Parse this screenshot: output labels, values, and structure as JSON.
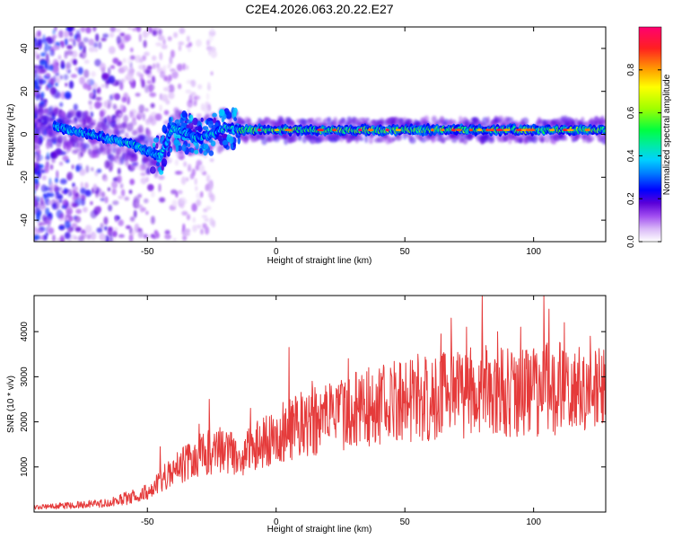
{
  "figure": {
    "title": "C2E4.2026.063.20.22.E27"
  },
  "colors": {
    "snr_line": "#e53b3b",
    "ridge_core": "#e8244d",
    "colormap": [
      "#ffffff",
      "#c98cf4",
      "#8a2be2",
      "#4b00d9",
      "#0000ff",
      "#00c0ff",
      "#00e0c0",
      "#00ff60",
      "#a0ff00",
      "#ffff00",
      "#ffa000",
      "#ff3000",
      "#ff0060"
    ]
  },
  "chart_data": [
    {
      "type": "heatmap",
      "title": "",
      "xlabel": "Height of straight line (km)",
      "ylabel": "Frequency (Hz)",
      "xlim": [
        -94,
        128
      ],
      "ylim": [
        -50,
        50
      ],
      "xticks": [
        -50,
        0,
        50,
        100
      ],
      "yticks": [
        -40,
        -20,
        0,
        20,
        40
      ],
      "grid": false,
      "ridge": {
        "description_points_x": [
          -94,
          -80,
          -65,
          -55,
          -50,
          -45,
          -40,
          -30,
          -25,
          -20,
          -15,
          0,
          50,
          100,
          128
        ],
        "frequency_y": [
          5,
          2,
          -2,
          -5,
          -8,
          -10,
          3,
          -2,
          0,
          3,
          2,
          2,
          2,
          2,
          2
        ]
      },
      "colorbar": {
        "label": "Normalized spectral amplitude",
        "range": [
          0.0,
          1.0
        ],
        "ticks": [
          0.0,
          0.2,
          0.4,
          0.6,
          0.8
        ]
      }
    },
    {
      "type": "line",
      "title": "",
      "xlabel": "Height of straight line (km)",
      "ylabel": "SNR (10 * v/v)",
      "xlim": [
        -94,
        128
      ],
      "ylim": [
        0,
        4800
      ],
      "xticks": [
        -50,
        0,
        50,
        100
      ],
      "yticks": [
        1000,
        2000,
        3000,
        4000
      ],
      "grid": false,
      "series": [
        {
          "trend_x": [
            -94,
            -80,
            -65,
            -55,
            -48,
            -45,
            -40,
            -35,
            -30,
            -25,
            -20,
            -15,
            -10,
            0,
            10,
            20,
            30,
            40,
            50,
            60,
            70,
            80,
            90,
            100,
            110,
            120,
            128
          ],
          "trend_y": [
            100,
            150,
            200,
            350,
            500,
            700,
            900,
            1100,
            1250,
            1350,
            1400,
            1250,
            1400,
            1700,
            1950,
            2050,
            2250,
            2400,
            2450,
            2550,
            2600,
            2700,
            2650,
            2700,
            2750,
            2700,
            2650
          ],
          "peaks_x": [
            -45,
            -30,
            -26,
            -10,
            5,
            14,
            28,
            36,
            55,
            64,
            68,
            74,
            80,
            86,
            95,
            104,
            106,
            112,
            122
          ],
          "peaks_y": [
            1450,
            1950,
            2500,
            2300,
            3650,
            2900,
            3400,
            3200,
            3500,
            3950,
            4300,
            4100,
            4800,
            4000,
            4100,
            4800,
            4500,
            4200,
            3900
          ]
        }
      ]
    }
  ]
}
